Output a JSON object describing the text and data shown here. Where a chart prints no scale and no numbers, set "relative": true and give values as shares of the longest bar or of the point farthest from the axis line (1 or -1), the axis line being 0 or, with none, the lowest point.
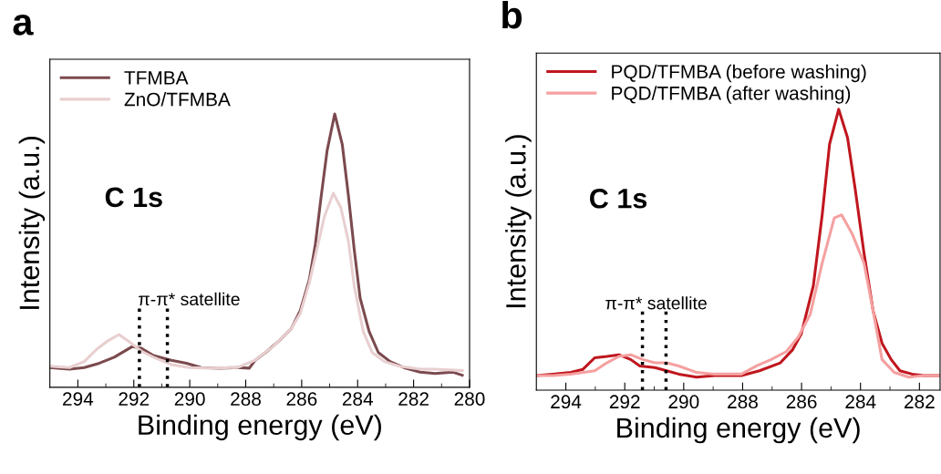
{
  "chart_data": [
    {
      "type": "line",
      "title": "a",
      "xlabel": "Binding energy (eV)",
      "ylabel": "Intensity (a.u.)",
      "relative": true,
      "xlim": [
        295,
        280
      ],
      "xticks": [
        294,
        292,
        290,
        288,
        286,
        284,
        282,
        280
      ],
      "legend": "top left",
      "grid": false,
      "annotations": [
        "C 1s",
        "π-π* satellite"
      ],
      "ref_lines": [
        {
          "axis": "x",
          "value": 291.8,
          "color": "#000000",
          "line_style": "dotted"
        },
        {
          "axis": "x",
          "value": 290.8,
          "color": "#000000",
          "line_style": "dotted"
        }
      ],
      "series": [
        {
          "name": "TFMBA",
          "color": "#7b4a4e",
          "x": [
            295.0,
            294.3,
            293.77,
            293.23,
            292.7,
            292.05,
            291.73,
            291.3,
            290.66,
            290.12,
            289.59,
            288.94,
            288.3,
            287.87,
            287.66,
            287.23,
            286.8,
            286.37,
            286.05,
            285.73,
            285.51,
            285.3,
            285.09,
            284.82,
            284.55,
            284.33,
            284.12,
            283.91,
            283.59,
            283.26,
            282.84,
            282.3,
            281.76,
            281.23,
            280.59,
            280.26
          ],
          "values": [
            0.072,
            0.066,
            0.072,
            0.088,
            0.11,
            0.149,
            0.143,
            0.116,
            0.099,
            0.088,
            0.072,
            0.07,
            0.072,
            0.07,
            0.099,
            0.132,
            0.171,
            0.215,
            0.281,
            0.392,
            0.524,
            0.701,
            0.866,
            1.0,
            0.889,
            0.701,
            0.502,
            0.326,
            0.204,
            0.127,
            0.094,
            0.07,
            0.055,
            0.05,
            0.055,
            0.044
          ]
        },
        {
          "name": "ZnO/TFMBA",
          "color": "#e8cfd0",
          "x": [
            295.0,
            294.3,
            293.77,
            293.34,
            292.91,
            292.53,
            292.16,
            291.73,
            291.3,
            290.66,
            290.02,
            289.37,
            288.3,
            287.66,
            287.02,
            286.37,
            286.05,
            285.73,
            285.51,
            285.19,
            284.87,
            284.6,
            284.33,
            284.12,
            283.8,
            283.48,
            283.05,
            282.51,
            281.76,
            281.23,
            280.26
          ],
          "values": [
            0.077,
            0.072,
            0.094,
            0.138,
            0.171,
            0.193,
            0.166,
            0.132,
            0.11,
            0.083,
            0.072,
            0.07,
            0.072,
            0.099,
            0.149,
            0.215,
            0.27,
            0.381,
            0.48,
            0.624,
            0.71,
            0.657,
            0.535,
            0.37,
            0.204,
            0.127,
            0.094,
            0.077,
            0.066,
            0.066,
            0.061
          ]
        }
      ]
    },
    {
      "type": "line",
      "title": "b",
      "xlabel": "Binding energy (eV)",
      "ylabel": "Intensity (a.u.)",
      "relative": true,
      "xlim": [
        295,
        281.3
      ],
      "xticks": [
        294,
        292,
        290,
        288,
        286,
        284,
        282
      ],
      "legend": "top left",
      "grid": false,
      "annotations": [
        "C 1s",
        "π-π* satellite"
      ],
      "ref_lines": [
        {
          "axis": "x",
          "value": 291.4,
          "color": "#000000",
          "line_style": "dotted"
        },
        {
          "axis": "x",
          "value": 290.6,
          "color": "#000000",
          "line_style": "dotted"
        }
      ],
      "series": [
        {
          "name": "PQD/TFMBA (before washing)",
          "color": "#c0161e",
          "x": [
            295.0,
            294.44,
            293.83,
            293.42,
            293.02,
            292.61,
            292.2,
            291.8,
            291.49,
            290.98,
            290.58,
            290.17,
            289.56,
            288.95,
            288.04,
            287.43,
            286.72,
            286.31,
            286.01,
            285.6,
            285.3,
            285.05,
            284.74,
            284.44,
            284.18,
            283.88,
            283.57,
            283.27,
            282.96,
            282.66,
            282.25,
            281.85,
            281.3
          ],
          "values": [
            0.052,
            0.057,
            0.063,
            0.074,
            0.115,
            0.12,
            0.126,
            0.109,
            0.086,
            0.08,
            0.069,
            0.057,
            0.046,
            0.052,
            0.052,
            0.069,
            0.097,
            0.143,
            0.2,
            0.372,
            0.624,
            0.876,
            1.0,
            0.899,
            0.716,
            0.487,
            0.281,
            0.167,
            0.109,
            0.069,
            0.057,
            0.052,
            0.052
          ]
        },
        {
          "name": "PQD/TFMBA (after washing)",
          "color": "#f5a0a0",
          "x": [
            295.0,
            294.44,
            293.83,
            293.02,
            292.61,
            292.2,
            291.8,
            291.39,
            290.98,
            290.58,
            290.17,
            289.56,
            288.95,
            288.04,
            287.53,
            287.03,
            286.52,
            286.11,
            285.71,
            285.3,
            284.89,
            284.64,
            284.28,
            283.88,
            283.57,
            283.27,
            282.86,
            282.36,
            281.85,
            281.3
          ],
          "values": [
            0.052,
            0.052,
            0.057,
            0.069,
            0.097,
            0.12,
            0.126,
            0.109,
            0.097,
            0.097,
            0.086,
            0.063,
            0.057,
            0.057,
            0.086,
            0.109,
            0.137,
            0.189,
            0.269,
            0.452,
            0.613,
            0.624,
            0.556,
            0.452,
            0.281,
            0.109,
            0.063,
            0.046,
            0.052,
            0.052
          ]
        }
      ]
    }
  ]
}
